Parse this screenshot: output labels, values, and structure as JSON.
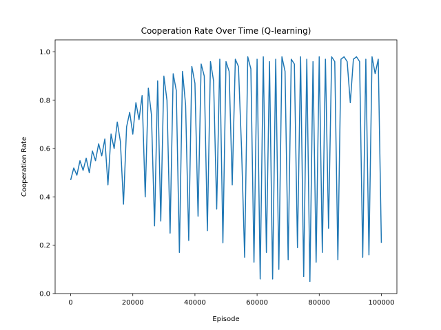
{
  "chart_data": {
    "type": "line",
    "title": "Cooperation Rate Over Time (Q-learning)",
    "xlabel": "Episode",
    "ylabel": "Cooperation Rate",
    "xlim": [
      -5000,
      105000
    ],
    "ylim": [
      0.0,
      1.05
    ],
    "xticks": [
      0,
      20000,
      40000,
      60000,
      80000,
      100000
    ],
    "xtick_labels": [
      "0",
      "20000",
      "40000",
      "60000",
      "80000",
      "100000"
    ],
    "yticks": [
      0.0,
      0.2,
      0.4,
      0.6,
      0.8,
      1.0
    ],
    "ytick_labels": [
      "0.0",
      "0.2",
      "0.4",
      "0.6",
      "0.8",
      "1.0"
    ],
    "grid": false,
    "legend": "none",
    "series": [
      {
        "color": "#1f77b4",
        "x": [
          0,
          1000,
          2000,
          3000,
          4000,
          5000,
          6000,
          7000,
          8000,
          9000,
          10000,
          11000,
          12000,
          13000,
          14000,
          15000,
          16000,
          17000,
          18000,
          19000,
          20000,
          21000,
          22000,
          23000,
          24000,
          25000,
          26000,
          27000,
          28000,
          29000,
          30000,
          31000,
          32000,
          33000,
          34000,
          35000,
          36000,
          37000,
          38000,
          39000,
          40000,
          41000,
          42000,
          43000,
          44000,
          45000,
          46000,
          47000,
          48000,
          49000,
          50000,
          51000,
          52000,
          53000,
          54000,
          55000,
          56000,
          57000,
          58000,
          59000,
          60000,
          61000,
          62000,
          63000,
          64000,
          65000,
          66000,
          67000,
          68000,
          69000,
          70000,
          71000,
          72000,
          73000,
          74000,
          75000,
          76000,
          77000,
          78000,
          79000,
          80000,
          81000,
          82000,
          83000,
          84000,
          85000,
          86000,
          87000,
          88000,
          89000,
          90000,
          91000,
          92000,
          93000,
          94000,
          95000,
          96000,
          97000,
          98000,
          99000,
          100000
        ],
        "y": [
          0.47,
          0.52,
          0.49,
          0.55,
          0.51,
          0.56,
          0.5,
          0.59,
          0.55,
          0.62,
          0.57,
          0.64,
          0.45,
          0.66,
          0.6,
          0.71,
          0.63,
          0.37,
          0.69,
          0.75,
          0.66,
          0.79,
          0.72,
          0.82,
          0.4,
          0.85,
          0.74,
          0.28,
          0.88,
          0.3,
          0.9,
          0.8,
          0.25,
          0.91,
          0.84,
          0.17,
          0.92,
          0.78,
          0.22,
          0.94,
          0.87,
          0.32,
          0.95,
          0.9,
          0.26,
          0.96,
          0.88,
          0.35,
          0.97,
          0.21,
          0.96,
          0.92,
          0.45,
          0.97,
          0.94,
          0.6,
          0.15,
          0.98,
          0.93,
          0.13,
          0.97,
          0.06,
          0.98,
          0.17,
          0.96,
          0.06,
          0.97,
          0.1,
          0.98,
          0.92,
          0.14,
          0.97,
          0.95,
          0.19,
          0.98,
          0.07,
          0.97,
          0.05,
          0.96,
          0.13,
          0.98,
          0.17,
          0.97,
          0.27,
          0.98,
          0.96,
          0.14,
          0.97,
          0.98,
          0.96,
          0.79,
          0.97,
          0.98,
          0.96,
          0.15,
          0.97,
          0.16,
          0.98,
          0.91,
          0.97,
          0.21
        ]
      }
    ]
  }
}
